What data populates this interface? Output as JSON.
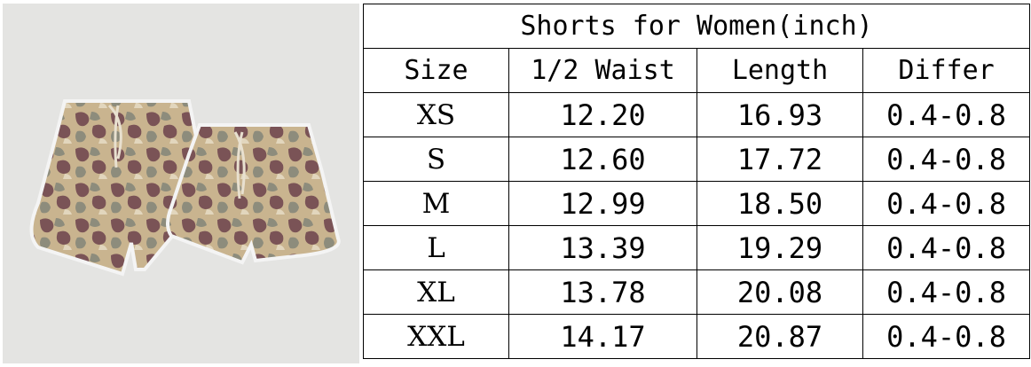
{
  "photo": {
    "description_icon": "camo-shorts-photo"
  },
  "table": {
    "title": "Shorts for Women(inch)",
    "headers": [
      "Size",
      "1/2 Waist",
      "Length",
      "Differ"
    ],
    "rows": [
      [
        "XS",
        "12.20",
        "16.93",
        "0.4-0.8"
      ],
      [
        "S",
        "12.60",
        "17.72",
        "0.4-0.8"
      ],
      [
        "M",
        "12.99",
        "18.50",
        "0.4-0.8"
      ],
      [
        "L",
        "13.39",
        "19.29",
        "0.4-0.8"
      ],
      [
        "XL",
        "13.78",
        "20.08",
        "0.4-0.8"
      ],
      [
        "XXL",
        "14.17",
        "20.87",
        "0.4-0.8"
      ]
    ]
  }
}
